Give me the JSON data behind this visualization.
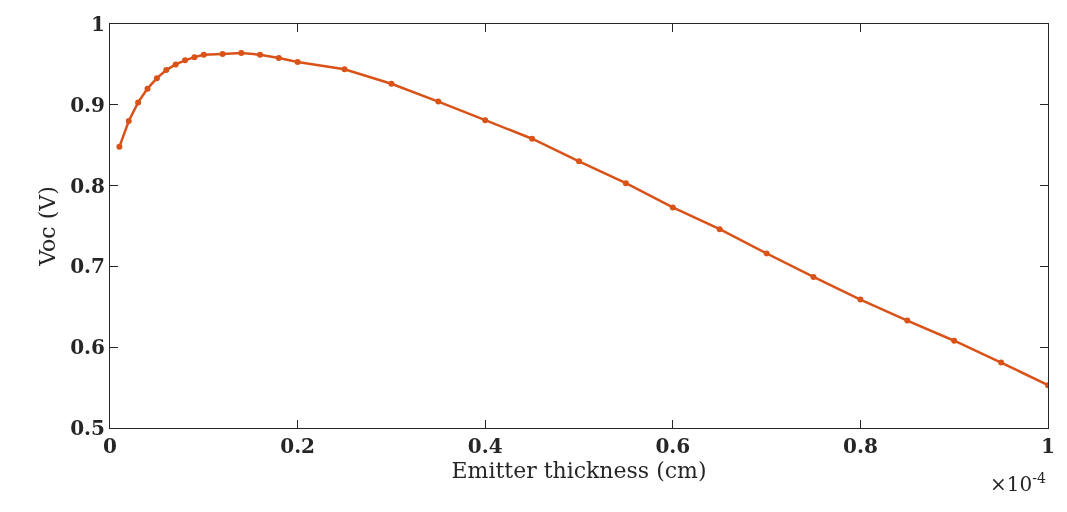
{
  "chart_data": {
    "type": "line",
    "xlabel": "Emitter thickness (cm)",
    "ylabel": "Voc (V)",
    "annotations": [
      "×10$^{-4}$"
    ],
    "x": [
      0.01,
      0.02,
      0.03,
      0.04,
      0.05,
      0.06,
      0.07,
      0.08,
      0.09,
      0.1,
      0.12,
      0.14,
      0.16,
      0.18,
      0.2,
      0.25,
      0.3,
      0.35,
      0.4,
      0.45,
      0.5,
      0.55,
      0.6,
      0.65,
      0.7,
      0.75,
      0.8,
      0.85,
      0.9,
      0.95,
      1.0
    ],
    "series": [
      {
        "color": "#d95319",
        "values": [
          0.848,
          0.88,
          0.903,
          0.92,
          0.933,
          0.943,
          0.95,
          0.955,
          0.959,
          0.962,
          0.963,
          0.964,
          0.962,
          0.958,
          0.953,
          0.944,
          0.926,
          0.904,
          0.881,
          0.858,
          0.83,
          0.803,
          0.773,
          0.746,
          0.716,
          0.687,
          0.659,
          0.633,
          0.608,
          0.581,
          0.553
        ]
      }
    ],
    "xlim": [
      0,
      1
    ],
    "ylim": [
      0.5,
      1
    ],
    "xticks": [
      0,
      0.2,
      0.4,
      0.6,
      0.8,
      1
    ],
    "yticks": [
      0.5,
      0.6,
      0.7,
      0.8,
      0.9,
      1
    ],
    "marker": "circle",
    "line_style": "solid"
  }
}
